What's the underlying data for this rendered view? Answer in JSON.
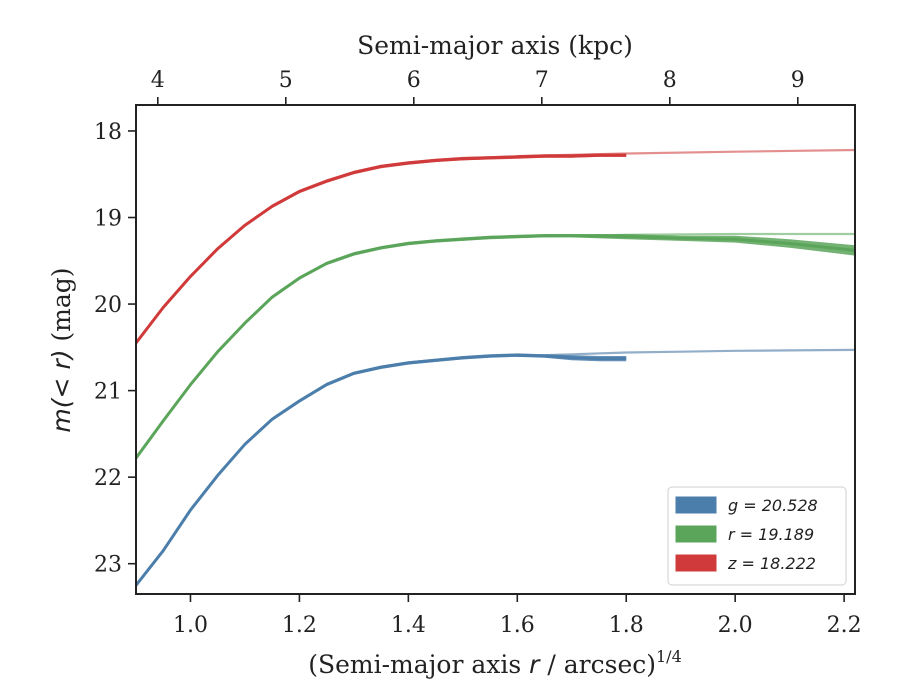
{
  "chart_data": {
    "type": "line",
    "xlabel_prefix": "(Semi-major axis ",
    "xlabel_var": "r",
    "xlabel_suffix": " / arcsec)",
    "xlabel_sup": "1/4",
    "top_xlabel": "Semi-major axis (kpc)",
    "ylabel_prefix": "m(< r)",
    "ylabel_suffix": " (mag)",
    "xlim": [
      0.9,
      2.22
    ],
    "ylim": [
      23.35,
      17.7
    ],
    "y_inverted": true,
    "xticks": [
      1.0,
      1.2,
      1.4,
      1.6,
      1.8,
      2.0,
      2.2
    ],
    "xtick_labels": [
      "1.0",
      "1.2",
      "1.4",
      "1.6",
      "1.8",
      "2.0",
      "2.2"
    ],
    "yticks": [
      18,
      19,
      20,
      21,
      22,
      23
    ],
    "ytick_labels": [
      "18",
      "19",
      "20",
      "21",
      "22",
      "23"
    ],
    "top_xticks_kpc": [
      4,
      5,
      6,
      7,
      8,
      9
    ],
    "top_xtick_labels": [
      "4",
      "5",
      "6",
      "7",
      "8",
      "9"
    ],
    "top_xtick_positions": [
      0.94,
      1.175,
      1.41,
      1.645,
      1.88,
      2.115
    ],
    "legend_position": "lower-right",
    "series": [
      {
        "name": "g = 20.528",
        "color": "#4c7eab",
        "model_color": "#93aec8",
        "x": [
          0.9,
          0.95,
          1.0,
          1.05,
          1.1,
          1.15,
          1.2,
          1.25,
          1.3,
          1.35,
          1.4,
          1.45,
          1.5,
          1.55,
          1.6,
          1.65,
          1.7,
          1.75,
          1.8
        ],
        "y": [
          23.25,
          22.85,
          22.38,
          21.98,
          21.62,
          21.33,
          21.12,
          20.93,
          20.8,
          20.73,
          20.68,
          20.65,
          20.62,
          20.6,
          20.59,
          20.6,
          20.62,
          20.63,
          20.63
        ],
        "band": [
          0.02,
          0.02,
          0.02,
          0.02,
          0.02,
          0.02,
          0.02,
          0.02,
          0.02,
          0.02,
          0.02,
          0.02,
          0.02,
          0.02,
          0.02,
          0.02,
          0.03,
          0.03,
          0.03
        ],
        "model_x": [
          1.6,
          1.7,
          1.8,
          1.9,
          2.0,
          2.1,
          2.22
        ],
        "model_y": [
          20.6,
          20.58,
          20.56,
          20.55,
          20.54,
          20.535,
          20.53
        ]
      },
      {
        "name": "r = 19.189",
        "color": "#5ba55b",
        "model_color": "#9fcd9f",
        "x": [
          0.9,
          0.95,
          1.0,
          1.05,
          1.1,
          1.15,
          1.2,
          1.25,
          1.3,
          1.35,
          1.4,
          1.45,
          1.5,
          1.55,
          1.6,
          1.65,
          1.7,
          1.8,
          1.9,
          2.0,
          2.1,
          2.22
        ],
        "y": [
          21.78,
          21.35,
          20.93,
          20.55,
          20.22,
          19.92,
          19.7,
          19.53,
          19.42,
          19.35,
          19.3,
          19.27,
          19.25,
          19.23,
          19.22,
          19.21,
          19.21,
          19.22,
          19.24,
          19.25,
          19.3,
          19.38
        ],
        "band": [
          0.02,
          0.02,
          0.02,
          0.02,
          0.02,
          0.02,
          0.02,
          0.02,
          0.02,
          0.02,
          0.02,
          0.02,
          0.02,
          0.02,
          0.02,
          0.02,
          0.02,
          0.03,
          0.03,
          0.04,
          0.05,
          0.06
        ],
        "model_x": [
          1.6,
          1.8,
          2.0,
          2.22
        ],
        "model_y": [
          19.22,
          19.2,
          19.19,
          19.19
        ]
      },
      {
        "name": "z = 18.222",
        "color": "#d03a3a",
        "model_color": "#e48f8f",
        "x": [
          0.9,
          0.95,
          1.0,
          1.05,
          1.1,
          1.15,
          1.2,
          1.25,
          1.3,
          1.35,
          1.4,
          1.45,
          1.5,
          1.55,
          1.6,
          1.65,
          1.7,
          1.75,
          1.8
        ],
        "y": [
          20.45,
          20.04,
          19.68,
          19.36,
          19.09,
          18.87,
          18.7,
          18.58,
          18.48,
          18.41,
          18.37,
          18.34,
          18.32,
          18.31,
          18.3,
          18.29,
          18.29,
          18.28,
          18.28
        ],
        "band": [
          0.02,
          0.02,
          0.02,
          0.02,
          0.02,
          0.02,
          0.02,
          0.02,
          0.02,
          0.02,
          0.02,
          0.02,
          0.02,
          0.02,
          0.02,
          0.02,
          0.02,
          0.02,
          0.02
        ],
        "model_x": [
          1.6,
          1.8,
          2.0,
          2.22
        ],
        "model_y": [
          18.29,
          18.26,
          18.24,
          18.22
        ]
      }
    ]
  }
}
